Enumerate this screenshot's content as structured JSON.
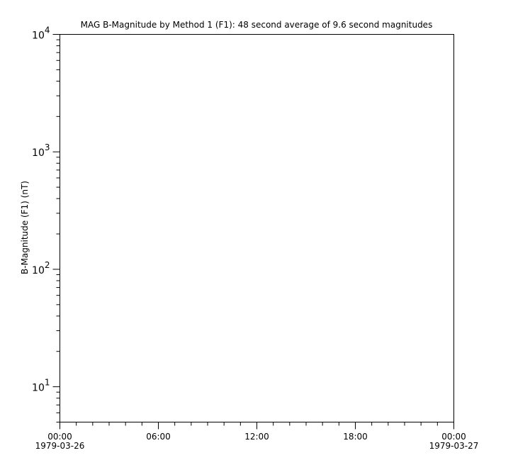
{
  "chart_data": {
    "type": "line",
    "title": "MAG  B-Magnitude by Method 1 (F1): 48 second average of 9.6 second magnitudes",
    "ylabel": "B-Magnitude (F1) (nT)",
    "xlabel": "",
    "yscale": "log",
    "ylim": [
      5,
      10000
    ],
    "y_ticks": [
      {
        "base": "10",
        "exp": "1",
        "value": 10
      },
      {
        "base": "10",
        "exp": "2",
        "value": 100
      },
      {
        "base": "10",
        "exp": "3",
        "value": 1000
      },
      {
        "base": "10",
        "exp": "4",
        "value": 10000
      }
    ],
    "xlim": [
      "1979-03-26T00:00",
      "1979-03-27T00:00"
    ],
    "x_ticks": [
      {
        "time": "00:00",
        "date": "1979-03-26",
        "hour": 0
      },
      {
        "time": "06:00",
        "date": "",
        "hour": 6
      },
      {
        "time": "12:00",
        "date": "",
        "hour": 12
      },
      {
        "time": "18:00",
        "date": "",
        "hour": 18
      },
      {
        "time": "00:00",
        "date": "1979-03-27",
        "hour": 24
      }
    ],
    "series": [],
    "grid": false
  }
}
